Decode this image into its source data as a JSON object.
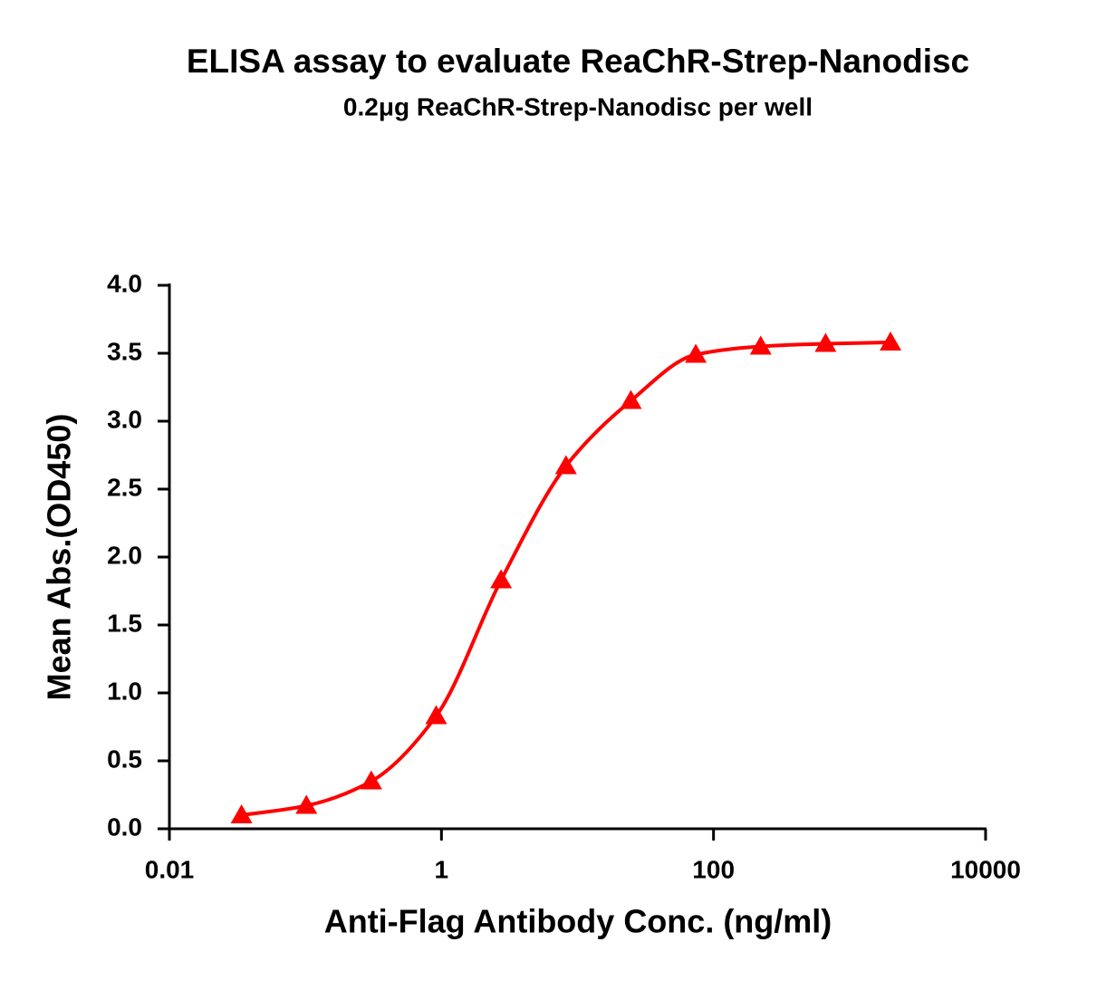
{
  "chart_data": {
    "type": "scatter",
    "title": "ELISA assay to evaluate ReaChR-Strep-Nanodisc",
    "subtitle": "0.2μg ReaChR-Strep-Nanodisc per well",
    "x_label": "Anti-Flag Antibody Conc. (ng/ml)",
    "y_label": "Mean Abs.(OD450)",
    "x": [
      0.0339,
      0.1016,
      0.3048,
      0.9145,
      2.743,
      8.23,
      24.69,
      74.07,
      222.2,
      666.7,
      2000
    ],
    "values": [
      0.1,
      0.17,
      0.35,
      0.83,
      1.83,
      2.67,
      3.15,
      3.49,
      3.55,
      3.57,
      3.58
    ],
    "color": "#ff0000",
    "x_scale": "log",
    "xlim": [
      0.01,
      10000
    ],
    "xticks": [
      0.01,
      1,
      100,
      10000
    ],
    "ylim": [
      0,
      4
    ],
    "yticks": [
      {
        "value": 0,
        "label": "0.0"
      },
      0.5,
      {
        "value": 1,
        "label": "1.0"
      },
      1.5,
      {
        "value": 2,
        "label": "2.0"
      },
      2.5,
      {
        "value": 3,
        "label": "3.0"
      },
      3.5,
      {
        "value": 4,
        "label": "4.0"
      }
    ],
    "grid": false
  }
}
